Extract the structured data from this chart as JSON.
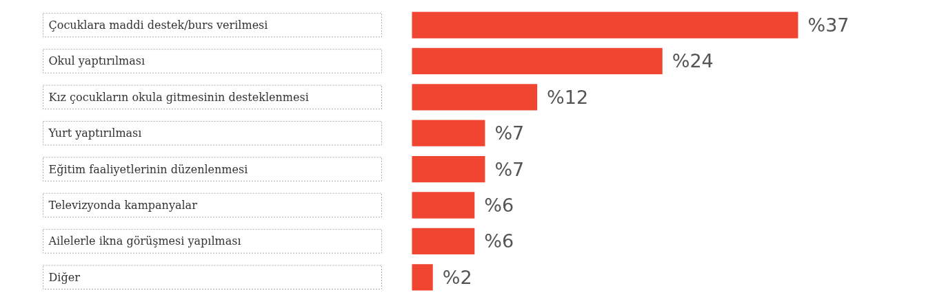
{
  "chart_data": {
    "type": "bar",
    "orientation": "horizontal",
    "categories": [
      "Çocuklara maddi destek/burs verilmesi",
      "Okul yaptırılması",
      "Kız çocukların okula gitmesinin desteklenmesi",
      "Yurt yaptırılması",
      "Eğitim faaliyetlerinin düzenlenmesi",
      "Televizyonda kampanyalar",
      "Ailelerle ikna görüşmesi yapılması",
      "Diğer"
    ],
    "values": [
      37,
      24,
      12,
      7,
      7,
      6,
      6,
      2
    ],
    "value_labels": [
      "%37",
      "%24",
      "%12",
      "%7",
      "%7",
      "%6",
      "%6",
      "%2"
    ],
    "color": "#f04530",
    "grid": false
  }
}
